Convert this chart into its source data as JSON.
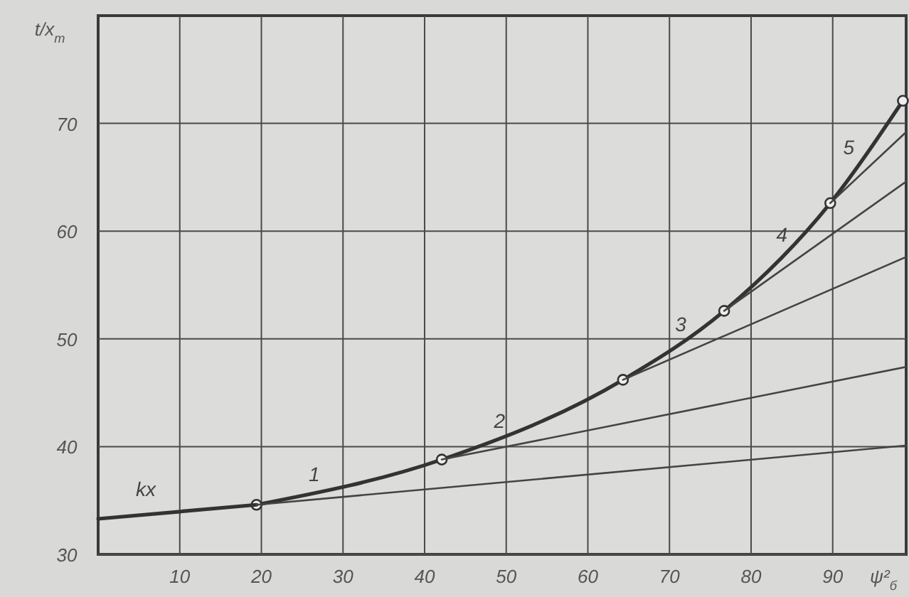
{
  "chart_data": {
    "type": "line",
    "xlabel": "ψ²$_{б}$",
    "ylabel": "t/x$_{m}$",
    "xlim": [
      0,
      99
    ],
    "ylim": [
      30,
      80
    ],
    "xticks": [
      10,
      20,
      30,
      40,
      50,
      60,
      70,
      80,
      90
    ],
    "yticks": [
      30,
      40,
      50,
      60,
      70
    ],
    "grid": true,
    "line_style": "solid",
    "series": [
      {
        "color": "#333333",
        "marker": "circle",
        "x": [
          19.4,
          42.1,
          64.3,
          76.7,
          89.7,
          98.6
        ],
        "values": [
          34.6,
          38.8,
          46.2,
          52.6,
          62.6,
          72.1
        ]
      },
      {
        "name": "kx",
        "color": "#333333",
        "marker": "none",
        "x": [
          0,
          19.4
        ],
        "values": [
          33.3,
          34.6
        ]
      },
      {
        "name": "1",
        "color": "#444444",
        "marker": "none",
        "x": [
          19.4,
          99
        ],
        "values": [
          34.6,
          40.1
        ]
      },
      {
        "name": "2",
        "color": "#444444",
        "marker": "none",
        "x": [
          42.1,
          99
        ],
        "values": [
          38.8,
          47.4
        ]
      },
      {
        "name": "3",
        "color": "#444444",
        "marker": "none",
        "x": [
          64.3,
          99
        ],
        "values": [
          46.2,
          57.6
        ]
      },
      {
        "name": "4",
        "color": "#444444",
        "marker": "none",
        "x": [
          76.7,
          99
        ],
        "values": [
          52.6,
          64.6
        ]
      },
      {
        "name": "5",
        "color": "#444444",
        "marker": "none",
        "x": [
          89.7,
          99
        ],
        "values": [
          62.6,
          69.2
        ]
      }
    ]
  }
}
